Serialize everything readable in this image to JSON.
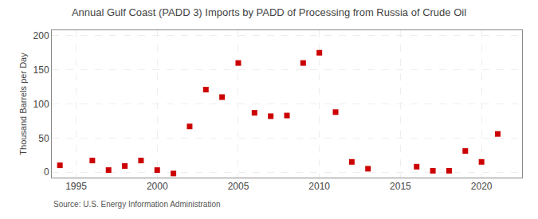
{
  "chart_data": {
    "type": "scatter",
    "title": "Annual Gulf Coast (PADD 3) Imports by PADD of Processing from Russia of Crude Oil",
    "ylabel": "Thousand Barrels per Day",
    "annotations": [
      "Source: U.S. Energy Information Administration"
    ],
    "x": [
      1994,
      1996,
      1997,
      1998,
      1999,
      2000,
      2001,
      2002,
      2003,
      2004,
      2005,
      2006,
      2007,
      2008,
      2009,
      2010,
      2011,
      2012,
      2013,
      2016,
      2017,
      2018,
      2019,
      2020,
      2021
    ],
    "values": [
      10,
      17,
      3,
      9,
      17,
      3,
      -2,
      67,
      121,
      110,
      160,
      87,
      82,
      83,
      160,
      175,
      88,
      15,
      5,
      8,
      2,
      2,
      31,
      15,
      56
    ],
    "color": "#cc0000",
    "marker": "square",
    "xlim": [
      1993.5,
      2022.5
    ],
    "ylim": [
      -8,
      208
    ],
    "xticks": [
      1995,
      2000,
      2005,
      2010,
      2015,
      2020
    ],
    "yticks": [
      0,
      50,
      100,
      150,
      200
    ],
    "grid": true
  }
}
